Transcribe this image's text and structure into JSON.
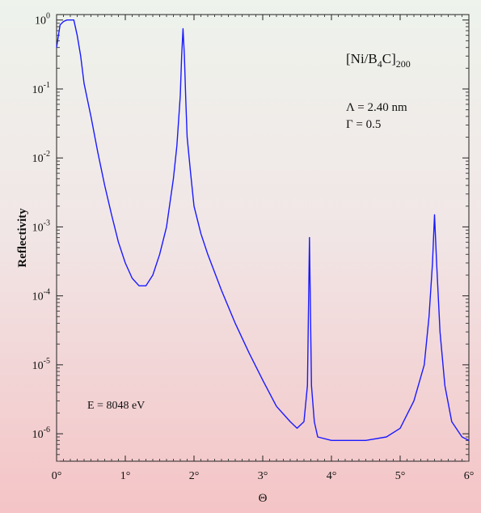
{
  "chart_data": {
    "type": "line",
    "title": "",
    "xlabel": "Θ",
    "ylabel": "Reflectivity",
    "x_unit": "deg",
    "y_scale": "log",
    "xlim": [
      0,
      6
    ],
    "ylim": [
      4e-07,
      1.2
    ],
    "x_ticks": [
      0,
      1,
      2,
      3,
      4,
      5,
      6
    ],
    "x_tick_labels": [
      "0°",
      "1°",
      "2°",
      "3°",
      "4°",
      "5°",
      "6°"
    ],
    "y_ticks": [
      1e-06,
      1e-05,
      0.0001,
      0.001,
      0.01,
      0.1,
      1
    ],
    "y_tick_labels": [
      {
        "base": "10",
        "exp": "-6"
      },
      {
        "base": "10",
        "exp": "-5"
      },
      {
        "base": "10",
        "exp": "-4"
      },
      {
        "base": "10",
        "exp": "-3"
      },
      {
        "base": "10",
        "exp": "-2"
      },
      {
        "base": "10",
        "exp": "-1"
      },
      {
        "base": "10",
        "exp": "0"
      }
    ],
    "series": [
      {
        "color": "#1a1aff",
        "x": [
          0.0,
          0.05,
          0.1,
          0.15,
          0.2,
          0.25,
          0.3,
          0.35,
          0.4,
          0.5,
          0.6,
          0.7,
          0.8,
          0.9,
          1.0,
          1.1,
          1.2,
          1.3,
          1.4,
          1.5,
          1.6,
          1.7,
          1.75,
          1.8,
          1.82,
          1.84,
          1.86,
          1.88,
          1.9,
          1.95,
          2.0,
          2.1,
          2.2,
          2.4,
          2.6,
          2.8,
          3.0,
          3.2,
          3.4,
          3.5,
          3.6,
          3.65,
          3.68,
          3.71,
          3.75,
          3.8,
          4.0,
          4.2,
          4.5,
          4.8,
          5.0,
          5.2,
          5.35,
          5.42,
          5.47,
          5.5,
          5.53,
          5.58,
          5.65,
          5.75,
          5.9,
          6.0
        ],
        "y": [
          0.4,
          0.85,
          0.95,
          1.0,
          1.0,
          1.0,
          0.6,
          0.3,
          0.12,
          0.04,
          0.012,
          0.004,
          0.0015,
          0.0006,
          0.0003,
          0.00018,
          0.00014,
          0.00014,
          0.0002,
          0.0004,
          0.001,
          0.005,
          0.015,
          0.08,
          0.3,
          0.75,
          0.3,
          0.07,
          0.02,
          0.006,
          0.002,
          0.0008,
          0.0004,
          0.00012,
          4e-05,
          1.5e-05,
          6e-06,
          2.5e-06,
          1.5e-06,
          1.2e-06,
          1.5e-06,
          5e-06,
          0.0007,
          5e-06,
          1.5e-06,
          9e-07,
          8e-07,
          8e-07,
          8e-07,
          9e-07,
          1.2e-06,
          3e-06,
          1e-05,
          5e-05,
          0.0003,
          0.0015,
          0.0003,
          3e-05,
          5e-06,
          1.5e-06,
          9e-07,
          8e-07
        ]
      }
    ],
    "annotations": {
      "sample": {
        "main": "[Ni/B",
        "sub1": "4",
        "mid": "C]",
        "sub2": "200"
      },
      "period": "Λ = 2.40 nm",
      "gamma": "Γ = 0.5",
      "energy": "E = 8048 eV"
    },
    "grid": false,
    "legend": "none"
  }
}
